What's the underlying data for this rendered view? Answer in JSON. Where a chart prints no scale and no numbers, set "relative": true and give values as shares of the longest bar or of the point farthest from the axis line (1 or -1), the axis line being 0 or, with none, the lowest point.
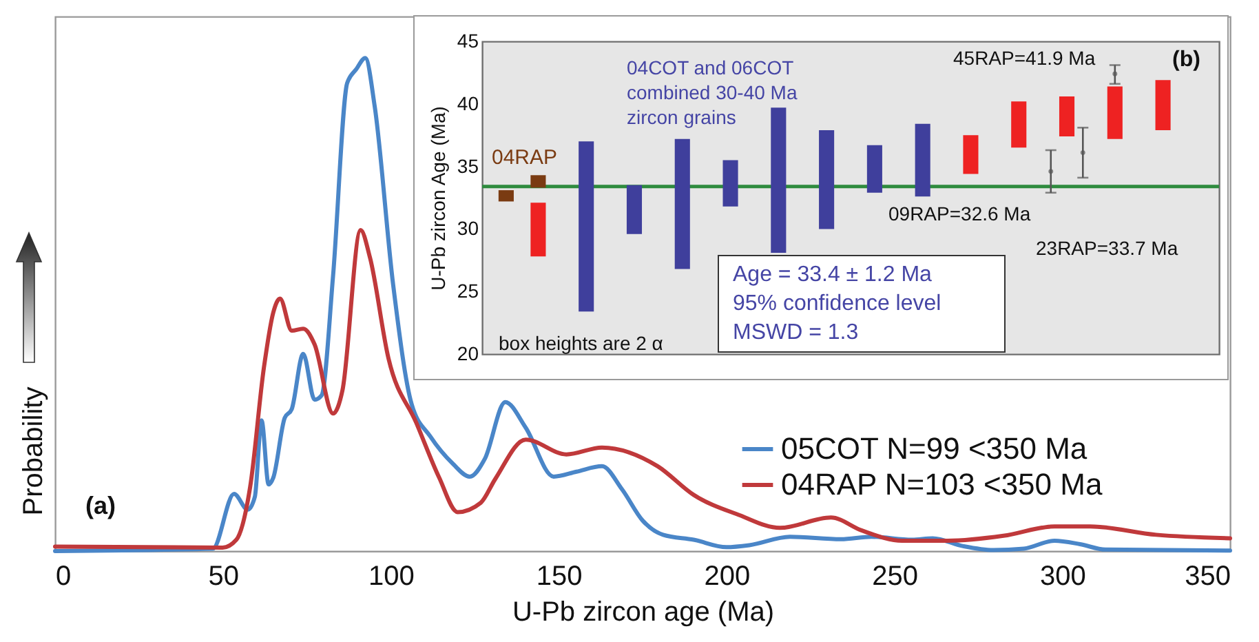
{
  "chart_data": [
    {
      "type": "line",
      "xlabel": "U-Pb zircon age (Ma)",
      "ylabel": "Probability",
      "xlim": [
        0,
        350
      ],
      "xticks": [
        0,
        50,
        100,
        150,
        200,
        250,
        300,
        350
      ],
      "relative": true,
      "legend": "right",
      "annotations": [
        "(a)"
      ],
      "series": [
        {
          "name": "05COT N=99 <350 Ma",
          "color": "#4a86c8",
          "x": [
            0,
            47,
            53.3,
            57.4,
            59.5,
            61.5,
            63.6,
            65,
            68.4,
            70.5,
            73.9,
            77.3,
            79.4,
            82.8,
            87,
            89.7,
            92.4,
            95.2,
            100.7,
            106.2,
            111.7,
            118.5,
            123.5,
            128,
            134.1,
            140.2,
            148.5,
            155.3,
            162.9,
            168.9,
            175,
            181.1,
            190.2,
            200,
            206.8,
            218.9,
            234.1,
            243.2,
            255.3,
            261.4,
            270.5,
            279.5,
            288.6,
            297.7,
            305.3,
            312.9,
            350
          ],
          "values": [
            0,
            0.005,
            0.116,
            0.084,
            0.11,
            0.265,
            0.135,
            0.149,
            0.27,
            0.288,
            0.4,
            0.307,
            0.316,
            0.558,
            0.949,
            0.977,
            1,
            0.902,
            0.54,
            0.298,
            0.233,
            0.177,
            0.151,
            0.187,
            0.302,
            0.25,
            0.151,
            0.161,
            0.172,
            0.125,
            0.062,
            0.033,
            0.023,
            0.008,
            0.012,
            0.029,
            0.024,
            0.029,
            0.023,
            0.026,
            0.01,
            0.002,
            0.005,
            0.021,
            0.014,
            0.003,
            0.001
          ]
        },
        {
          "name": "04RAP N=103 <350 Ma",
          "color": "#c0393b",
          "x": [
            0,
            49.9,
            54,
            58.1,
            62.2,
            65,
            67,
            70.5,
            73.9,
            77.3,
            82.8,
            85.6,
            91,
            93.8,
            99.3,
            107.6,
            114.4,
            119.9,
            126.8,
            131.1,
            140.2,
            152.3,
            162.9,
            179.5,
            190.2,
            203.8,
            215.9,
            231.1,
            240.2,
            252.3,
            265.9,
            282.5,
            297.7,
            308.3,
            328,
            350
          ],
          "values": [
            0.009,
            0.007,
            0.023,
            0.13,
            0.372,
            0.484,
            0.512,
            0.447,
            0.451,
            0.419,
            0.279,
            0.326,
            0.651,
            0.595,
            0.391,
            0.26,
            0.149,
            0.079,
            0.098,
            0.146,
            0.226,
            0.196,
            0.21,
            0.172,
            0.114,
            0.073,
            0.047,
            0.068,
            0.042,
            0.021,
            0.021,
            0.031,
            0.05,
            0.05,
            0.033,
            0.026
          ]
        }
      ]
    },
    {
      "type": "bar",
      "ylabel": "U-Pb zircon Age (Ma)",
      "ylim": [
        20,
        45
      ],
      "yticks": [
        20,
        25,
        30,
        35,
        40,
        45
      ],
      "categories": [
        null,
        null,
        null,
        null,
        null,
        null,
        null,
        null,
        null,
        null,
        null,
        null,
        null,
        null,
        null,
        null,
        null,
        null,
        null,
        null,
        null,
        null,
        null,
        null,
        null,
        null,
        null,
        null,
        null,
        null,
        null,
        null,
        null,
        null,
        null,
        null,
        null,
        null,
        null,
        null,
        null,
        null,
        null,
        null,
        null,
        null
      ],
      "annotations": [
        "(b)",
        "04COT and 06COT\ncombined 30-40 Ma\nzircon grains",
        "04RAP",
        "45RAP=41.9 Ma",
        "09RAP=32.6 Ma",
        "23RAP=33.7 Ma",
        "box heights are 2 α",
        "Age = 33.4 ± 1.2 Ma\n95% confidence level\nMSWD = 1.3"
      ],
      "ref_lines": [
        {
          "axis": "y",
          "value": 33.4,
          "color": "#2e8b3e"
        }
      ],
      "series": [
        {
          "color": "#7a3b12",
          "values": [
            null,
            0.9,
            null,
            1.0,
            null,
            null,
            null,
            null,
            null,
            null,
            null,
            null,
            null,
            null,
            null,
            null,
            null,
            null,
            null,
            null,
            null,
            null,
            null,
            null,
            null,
            null,
            null,
            null,
            null,
            null,
            null,
            null,
            null,
            null,
            null,
            null,
            null,
            null,
            null,
            null,
            null,
            null,
            null,
            null,
            null,
            null
          ],
          "base": [
            null,
            32.2,
            null,
            33.3,
            null,
            null,
            null,
            null,
            null,
            null,
            null,
            null,
            null,
            null,
            null,
            null,
            null,
            null,
            null,
            null,
            null,
            null,
            null,
            null,
            null,
            null,
            null,
            null,
            null,
            null,
            null,
            null,
            null,
            null,
            null,
            null,
            null,
            null,
            null,
            null,
            null,
            null,
            null,
            null,
            null,
            null
          ]
        },
        {
          "color": "#ee2222",
          "values": [
            null,
            null,
            null,
            4.3,
            null,
            null,
            null,
            null,
            null,
            null,
            null,
            null,
            null,
            null,
            null,
            null,
            null,
            null,
            null,
            null,
            null,
            null,
            null,
            null,
            null,
            null,
            null,
            null,
            null,
            null,
            3.1,
            null,
            null,
            3.7,
            null,
            null,
            3.2,
            null,
            null,
            4.2,
            null,
            null,
            4.0,
            null,
            null,
            null
          ],
          "base": [
            null,
            null,
            null,
            27.8,
            null,
            null,
            null,
            null,
            null,
            null,
            null,
            null,
            null,
            null,
            null,
            null,
            null,
            null,
            null,
            null,
            null,
            null,
            null,
            null,
            null,
            null,
            null,
            null,
            null,
            null,
            34.4,
            null,
            null,
            36.5,
            null,
            null,
            37.4,
            null,
            null,
            37.2,
            null,
            null,
            37.9,
            null,
            null,
            null
          ]
        },
        {
          "color": "#3f3f9c",
          "values": [
            null,
            null,
            null,
            null,
            null,
            null,
            13.6,
            null,
            null,
            3.9,
            null,
            null,
            10.4,
            null,
            null,
            3.7,
            null,
            null,
            11.6,
            null,
            null,
            7.9,
            null,
            null,
            3.8,
            null,
            null,
            5.8,
            null,
            null,
            null,
            null,
            null,
            null,
            null,
            null,
            null,
            null,
            null,
            null,
            null,
            null,
            null,
            null,
            null,
            null
          ],
          "base": [
            null,
            null,
            null,
            null,
            null,
            null,
            23.4,
            null,
            null,
            29.6,
            null,
            null,
            26.8,
            null,
            null,
            31.8,
            null,
            null,
            28.1,
            null,
            null,
            30.0,
            null,
            null,
            32.9,
            null,
            null,
            32.6,
            null,
            null,
            null,
            null,
            null,
            null,
            null,
            null,
            null,
            null,
            null,
            null,
            null,
            null,
            null,
            null,
            null,
            null
          ]
        },
        {
          "type": "scatter",
          "marker": "circle",
          "color": "#555555",
          "values": [
            null,
            null,
            null,
            null,
            null,
            null,
            null,
            null,
            null,
            null,
            null,
            null,
            null,
            null,
            null,
            null,
            null,
            null,
            null,
            null,
            null,
            null,
            null,
            null,
            null,
            null,
            null,
            null,
            null,
            null,
            null,
            null,
            null,
            null,
            null,
            34.6,
            null,
            36.1,
            null,
            42.4,
            null,
            null,
            null,
            null,
            null,
            null
          ],
          "errors": [
            null,
            null,
            null,
            null,
            null,
            null,
            null,
            null,
            null,
            null,
            null,
            null,
            null,
            null,
            null,
            null,
            null,
            null,
            null,
            null,
            null,
            null,
            null,
            null,
            null,
            null,
            null,
            null,
            null,
            null,
            null,
            null,
            null,
            null,
            null,
            [
              32.9,
              36.3
            ],
            null,
            [
              34.1,
              38.1
            ],
            null,
            [
              41.6,
              43.1
            ],
            null,
            null,
            null,
            null,
            null,
            null
          ]
        }
      ]
    }
  ]
}
